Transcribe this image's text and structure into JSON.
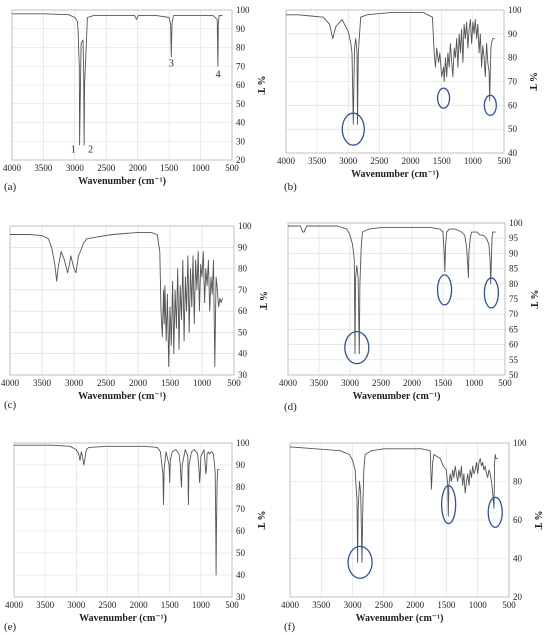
{
  "chart_data": [
    {
      "type": "line",
      "panel_label": "(a)",
      "xlabel": "Wavenumber (cm⁻¹)",
      "ylabel": "% T",
      "xlim": [
        4000,
        500
      ],
      "ylim": [
        20,
        100
      ],
      "x_ticks": [
        4000,
        3500,
        3000,
        2500,
        2000,
        1500,
        1000,
        500
      ],
      "y_ticks": [
        20,
        30,
        40,
        50,
        60,
        70,
        80,
        90,
        100
      ],
      "grid": true,
      "series": [
        {
          "x": [
            4000,
            3500,
            3100,
            3000,
            2960,
            2950,
            2930,
            2925,
            2920,
            2900,
            2870,
            2860,
            2853,
            2845,
            2800,
            2700,
            2500,
            2050,
            2020,
            1990,
            1700,
            1500,
            1475,
            1465,
            1455,
            1430,
            1300,
            1000,
            800,
            735,
            725,
            718,
            705,
            650
          ],
          "y": [
            98,
            98,
            97.5,
            96,
            94,
            90,
            70,
            28,
            40,
            82,
            84,
            65,
            28,
            60,
            96,
            97,
            97,
            97,
            95,
            97,
            97,
            96,
            92,
            75,
            93,
            97,
            97,
            97,
            97,
            95,
            70,
            92,
            97,
            97
          ]
        }
      ],
      "annotations": [
        {
          "text": "1",
          "x": 2930,
          "y": 24
        },
        {
          "text": "2",
          "x": 2845,
          "y": 24
        },
        {
          "text": "3",
          "x": 1465,
          "y": 70
        },
        {
          "text": "4",
          "x": 720,
          "y": 64
        }
      ]
    },
    {
      "type": "line",
      "panel_label": "(b)",
      "xlabel": "Wavenumber (cm⁻¹)",
      "ylabel": "% T",
      "xlim": [
        4000,
        500
      ],
      "ylim": [
        40,
        100
      ],
      "x_ticks": [
        4000,
        3500,
        3000,
        2500,
        2000,
        1500,
        1000,
        500
      ],
      "y_ticks": [
        40,
        50,
        60,
        70,
        80,
        90,
        100
      ],
      "grid": true,
      "series": [
        {
          "x": [
            4000,
            3800,
            3600,
            3400,
            3300,
            3250,
            3200,
            3100,
            3060,
            3000,
            2960,
            2940,
            2920,
            2900,
            2880,
            2860,
            2852,
            2840,
            2800,
            2700,
            2500,
            2300,
            2100,
            2000,
            1800,
            1650,
            1620,
            1600,
            1580,
            1550,
            1530,
            1500,
            1470,
            1460,
            1440,
            1420,
            1400,
            1380,
            1360,
            1340,
            1320,
            1300,
            1280,
            1260,
            1240,
            1220,
            1200,
            1180,
            1160,
            1140,
            1120,
            1100,
            1080,
            1060,
            1040,
            1020,
            1000,
            980,
            960,
            940,
            920,
            900,
            880,
            860,
            840,
            820,
            800,
            780,
            760,
            740,
            730,
            720,
            710,
            700,
            680,
            650
          ],
          "y": [
            98,
            98,
            97.5,
            97,
            94,
            88,
            93,
            96,
            94,
            91,
            86,
            82,
            52,
            84,
            88,
            82,
            52,
            82,
            97,
            98,
            98.5,
            99,
            99,
            99,
            99,
            97,
            82,
            76,
            84,
            78,
            82,
            72,
            76,
            70,
            80,
            72,
            82,
            76,
            86,
            78,
            72,
            84,
            80,
            88,
            76,
            90,
            82,
            92,
            78,
            94,
            88,
            95,
            84,
            92,
            96,
            86,
            95,
            90,
            96,
            88,
            94,
            82,
            90,
            76,
            85,
            80,
            72,
            86,
            78,
            74,
            62,
            74,
            84,
            86,
            88,
            88
          ]
        }
      ],
      "annotations": []
    },
    {
      "type": "line",
      "panel_label": "(c)",
      "xlabel": "Wavenumber (cm⁻¹)",
      "ylabel": "% T",
      "xlim": [
        4000,
        500
      ],
      "ylim": [
        30,
        100
      ],
      "x_ticks": [
        4000,
        3500,
        3000,
        2500,
        2000,
        1500,
        1000,
        500
      ],
      "y_ticks": [
        30,
        40,
        50,
        60,
        70,
        80,
        90,
        100
      ],
      "grid": true,
      "series": [
        {
          "x": [
            4000,
            3700,
            3500,
            3400,
            3350,
            3300,
            3270,
            3250,
            3200,
            3150,
            3100,
            3070,
            3050,
            3000,
            2970,
            2950,
            2930,
            2900,
            2850,
            2800,
            2600,
            2400,
            2200,
            2000,
            1800,
            1700,
            1660,
            1640,
            1620,
            1600,
            1590,
            1580,
            1560,
            1540,
            1520,
            1500,
            1480,
            1460,
            1440,
            1420,
            1400,
            1380,
            1360,
            1340,
            1320,
            1300,
            1280,
            1260,
            1240,
            1220,
            1200,
            1180,
            1160,
            1140,
            1120,
            1100,
            1080,
            1060,
            1040,
            1020,
            1000,
            980,
            960,
            940,
            920,
            900,
            880,
            860,
            840,
            820,
            800,
            780,
            760,
            740,
            720,
            700,
            680
          ],
          "y": [
            96,
            96,
            95.5,
            94,
            90,
            82,
            74,
            80,
            88,
            84,
            78,
            82,
            86,
            80,
            78,
            82,
            86,
            88,
            92,
            94,
            95,
            96,
            96.5,
            97,
            97,
            96,
            88,
            60,
            48,
            70,
            54,
            72,
            46,
            68,
            34,
            62,
            44,
            74,
            40,
            70,
            52,
            80,
            42,
            72,
            56,
            84,
            46,
            76,
            60,
            86,
            50,
            80,
            62,
            86,
            54,
            84,
            70,
            88,
            60,
            82,
            76,
            88,
            64,
            80,
            72,
            84,
            60,
            76,
            68,
            84,
            34,
            76,
            70,
            62,
            66,
            64,
            66
          ]
        }
      ],
      "annotations": []
    },
    {
      "type": "line",
      "panel_label": "(d)",
      "xlabel": "Wavenumber (cm⁻¹)",
      "ylabel": "% T",
      "xlim": [
        4000,
        500
      ],
      "ylim": [
        50,
        100
      ],
      "x_ticks": [
        4000,
        3500,
        3000,
        2500,
        2000,
        1500,
        1000,
        500
      ],
      "y_ticks": [
        50,
        55,
        60,
        65,
        70,
        75,
        80,
        85,
        90,
        95,
        100
      ],
      "grid": true,
      "series": [
        {
          "x": [
            4000,
            3800,
            3760,
            3740,
            3700,
            3600,
            3400,
            3200,
            3050,
            3000,
            2960,
            2930,
            2920,
            2910,
            2890,
            2870,
            2860,
            2850,
            2840,
            2820,
            2800,
            2700,
            2500,
            2300,
            2100,
            1900,
            1700,
            1550,
            1500,
            1480,
            1470,
            1460,
            1440,
            1400,
            1300,
            1200,
            1150,
            1120,
            1100,
            1090,
            1080,
            1060,
            1040,
            1000,
            950,
            900,
            850,
            800,
            760,
            740,
            730,
            720,
            710,
            700,
            680,
            650
          ],
          "y": [
            99,
            99,
            97,
            97,
            99,
            99,
            99,
            99,
            98,
            96,
            93,
            88,
            57,
            82,
            86,
            82,
            70,
            57,
            80,
            92,
            97,
            98,
            98.5,
            98.5,
            98.5,
            98.5,
            98.5,
            98,
            97,
            90,
            84,
            92,
            97,
            98,
            98,
            97,
            96,
            92,
            86,
            82,
            91,
            95,
            97,
            97,
            97,
            96,
            96,
            95,
            93,
            88,
            80,
            88,
            95,
            97,
            97,
            97
          ]
        }
      ],
      "annotations": []
    },
    {
      "type": "line",
      "panel_label": "(e)",
      "xlabel": "Wavenumber (cm⁻¹)",
      "ylabel": "% T",
      "xlim": [
        4000,
        500
      ],
      "ylim": [
        30,
        100
      ],
      "x_ticks": [
        4000,
        3500,
        3000,
        2500,
        2000,
        1500,
        1000,
        500
      ],
      "y_ticks": [
        30,
        40,
        50,
        60,
        70,
        80,
        90,
        100
      ],
      "grid": true,
      "series": [
        {
          "x": [
            4000,
            3700,
            3400,
            3100,
            3000,
            2960,
            2940,
            2920,
            2900,
            2880,
            2860,
            2840,
            2800,
            2500,
            2200,
            1900,
            1700,
            1650,
            1610,
            1600,
            1590,
            1560,
            1510,
            1500,
            1490,
            1460,
            1400,
            1350,
            1330,
            1320,
            1310,
            1300,
            1250,
            1210,
            1200,
            1190,
            1150,
            1100,
            1050,
            1030,
            1020,
            1010,
            1000,
            950,
            930,
            920,
            910,
            900,
            880,
            860,
            840,
            820,
            800,
            780,
            770,
            760,
            755,
            750,
            740,
            730,
            720,
            700
          ],
          "y": [
            99,
            99,
            99,
            98.5,
            97,
            95,
            92,
            96,
            94,
            90,
            93,
            97,
            98,
            98.5,
            98.5,
            98.5,
            98,
            96,
            86,
            72,
            88,
            96,
            90,
            82,
            92,
            96,
            97,
            95,
            90,
            84,
            80,
            90,
            97,
            94,
            72,
            90,
            96,
            97,
            95,
            88,
            82,
            86,
            94,
            97,
            90,
            86,
            88,
            95,
            96,
            95,
            96,
            96,
            95,
            90,
            86,
            60,
            40,
            58,
            82,
            88,
            88,
            88
          ]
        }
      ],
      "annotations": []
    },
    {
      "type": "line",
      "panel_label": "(f)",
      "xlabel": "Wavenumber (cm⁻¹)",
      "ylabel": "% T",
      "xlim": [
        4000,
        500
      ],
      "ylim": [
        20,
        100
      ],
      "x_ticks": [
        4000,
        3500,
        3000,
        2500,
        2000,
        1500,
        1000,
        500
      ],
      "y_ticks": [
        20,
        40,
        60,
        80,
        100
      ],
      "grid": true,
      "series": [
        {
          "x": [
            4000,
            3800,
            3600,
            3400,
            3200,
            3050,
            3000,
            2960,
            2930,
            2920,
            2910,
            2890,
            2870,
            2860,
            2850,
            2840,
            2820,
            2800,
            2700,
            2500,
            2300,
            2100,
            1900,
            1760,
            1750,
            1740,
            1720,
            1700,
            1650,
            1600,
            1550,
            1500,
            1480,
            1470,
            1460,
            1440,
            1420,
            1400,
            1380,
            1360,
            1340,
            1320,
            1300,
            1280,
            1260,
            1240,
            1220,
            1200,
            1180,
            1160,
            1140,
            1120,
            1100,
            1080,
            1060,
            1040,
            1020,
            1000,
            980,
            960,
            940,
            920,
            900,
            880,
            860,
            840,
            820,
            800,
            780,
            760,
            740,
            735,
            730,
            720,
            710,
            700,
            680
          ],
          "y": [
            98,
            97.5,
            97,
            96.5,
            96,
            94,
            91,
            86,
            70,
            38,
            66,
            80,
            74,
            58,
            38,
            62,
            86,
            94,
            96,
            97,
            97,
            97,
            97,
            96,
            86,
            76,
            90,
            94,
            93,
            92,
            88,
            86,
            78,
            62,
            78,
            84,
            80,
            86,
            82,
            88,
            84,
            80,
            86,
            82,
            88,
            78,
            84,
            74,
            80,
            84,
            78,
            86,
            82,
            88,
            84,
            86,
            90,
            84,
            90,
            92,
            88,
            90,
            86,
            88,
            84,
            82,
            86,
            84,
            80,
            74,
            66,
            78,
            90,
            94,
            92,
            92,
            92
          ]
        }
      ],
      "annotations": []
    }
  ]
}
